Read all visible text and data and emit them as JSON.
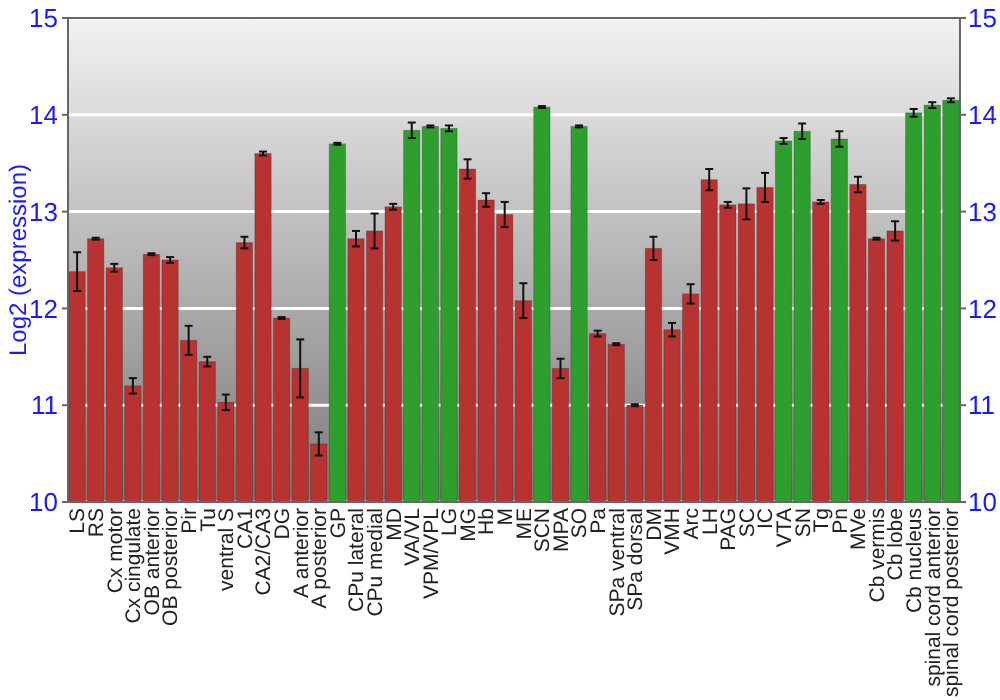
{
  "chart_data": {
    "type": "bar",
    "ylabel": "Log2 (expression)",
    "categories": [
      "LS",
      "RS",
      "Cx motor",
      "Cx cingulate",
      "OB anterior",
      "OB posterior",
      "Pir",
      "Tu",
      "ventral S",
      "CA1",
      "CA2/CA3",
      "DG",
      "A anterior",
      "A posterior",
      "GP",
      "CPu lateral",
      "CPu medial",
      "MD",
      "VA/VL",
      "VPM/VPL",
      "LG",
      "MG",
      "Hb",
      "M",
      "ME",
      "SCN",
      "MPA",
      "SO",
      "Pa",
      "SPa ventral",
      "SPa dorsal",
      "DM",
      "VMH",
      "Arc",
      "LH",
      "PAG",
      "SC",
      "IC",
      "VTA",
      "SN",
      "Tg",
      "Pn",
      "MVe",
      "Cb vermis",
      "Cb lobe",
      "Cb nucleus",
      "spinal cord anterior",
      "spinal cord posterior"
    ],
    "values": [
      12.38,
      12.72,
      12.42,
      11.2,
      12.56,
      12.5,
      11.67,
      11.45,
      11.03,
      12.68,
      13.6,
      11.9,
      11.38,
      10.6,
      13.7,
      12.72,
      12.8,
      13.05,
      13.84,
      13.88,
      13.86,
      13.44,
      13.12,
      12.97,
      12.08,
      14.08,
      11.38,
      13.88,
      11.74,
      11.63,
      11.0,
      12.62,
      11.78,
      12.15,
      13.33,
      13.07,
      13.08,
      13.25,
      13.73,
      13.83,
      13.1,
      13.75,
      13.28,
      12.72,
      12.8,
      14.02,
      14.1,
      14.15
    ],
    "errors": [
      0.2,
      0.01,
      0.04,
      0.08,
      0.01,
      0.03,
      0.15,
      0.05,
      0.08,
      0.06,
      0.02,
      0.01,
      0.3,
      0.12,
      0.01,
      0.08,
      0.18,
      0.03,
      0.08,
      0.01,
      0.03,
      0.1,
      0.07,
      0.13,
      0.18,
      0.01,
      0.1,
      0.01,
      0.03,
      0.01,
      0.01,
      0.12,
      0.07,
      0.1,
      0.11,
      0.03,
      0.16,
      0.15,
      0.03,
      0.08,
      0.02,
      0.08,
      0.08,
      0.01,
      0.1,
      0.04,
      0.03,
      0.02
    ],
    "colors": [
      "#b83232",
      "#b83232",
      "#b83232",
      "#b83232",
      "#b83232",
      "#b83232",
      "#b83232",
      "#b83232",
      "#b83232",
      "#b83232",
      "#b83232",
      "#b83232",
      "#b83232",
      "#b83232",
      "#2e9e2e",
      "#b83232",
      "#b83232",
      "#b83232",
      "#2e9e2e",
      "#2e9e2e",
      "#2e9e2e",
      "#b83232",
      "#b83232",
      "#b83232",
      "#b83232",
      "#2e9e2e",
      "#b83232",
      "#2e9e2e",
      "#b83232",
      "#b83232",
      "#b83232",
      "#b83232",
      "#b83232",
      "#b83232",
      "#b83232",
      "#b83232",
      "#b83232",
      "#b83232",
      "#2e9e2e",
      "#2e9e2e",
      "#b83232",
      "#2e9e2e",
      "#b83232",
      "#b83232",
      "#b83232",
      "#2e9e2e",
      "#2e9e2e",
      "#2e9e2e"
    ],
    "ylim": [
      10,
      15
    ],
    "yticks": [
      10,
      11,
      12,
      13,
      14,
      15
    ],
    "y2lim": [
      10,
      15
    ],
    "y2ticks": [
      10,
      11,
      12,
      13,
      14,
      15
    ],
    "grid": "y"
  }
}
